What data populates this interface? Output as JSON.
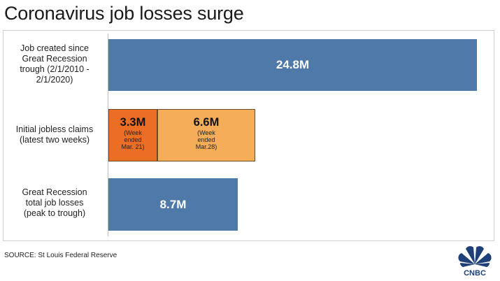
{
  "title": "Coronavirus job losses surge",
  "source": "SOURCE: St Louis Federal Reserve",
  "logo_text": "CNBC",
  "colors": {
    "blue": "#4f79a9",
    "orange_dark": "#ec6e25",
    "orange_light": "#f5ad5a"
  },
  "labels": {
    "row1": [
      "Job created since",
      "Great Recession",
      "trough (2/1/2010 -",
      "2/1/2020)"
    ],
    "row2": [
      "Initial jobless claims",
      "(latest two weeks)"
    ],
    "row3": [
      "Great Recession",
      "total job losses",
      "(peak to trough)"
    ]
  },
  "chart_data": {
    "type": "bar",
    "orientation": "horizontal",
    "stacked": true,
    "title": "Coronavirus job losses surge",
    "categories": [
      "Job created since Great Recession trough (2/1/2010 - 2/1/2020)",
      "Initial jobless claims (latest two weeks)",
      "Great Recession total job losses (peak to trough)"
    ],
    "bars": [
      {
        "segments": [
          {
            "value": 24.8,
            "label": "24.8M",
            "note": []
          }
        ]
      },
      {
        "segments": [
          {
            "value": 3.3,
            "label": "3.3M",
            "note": [
              "(Week",
              "ended",
              "Mar. 21)"
            ]
          },
          {
            "value": 6.6,
            "label": "6.6M",
            "note": [
              "(Week",
              "ended",
              "Mar.28)"
            ]
          }
        ]
      },
      {
        "segments": [
          {
            "value": 8.7,
            "label": "8.7M",
            "note": []
          }
        ]
      }
    ],
    "unit": "M",
    "xlim": [
      0,
      24.8
    ],
    "grid": false,
    "legend": "none"
  }
}
